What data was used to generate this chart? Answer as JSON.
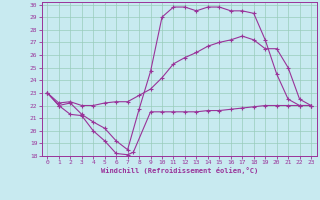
{
  "xlabel": "Windchill (Refroidissement éolien,°C)",
  "background_color": "#c8eaf0",
  "grid_color": "#99ccbb",
  "line_color": "#993399",
  "xlim": [
    -0.5,
    23.5
  ],
  "ylim": [
    18,
    30.2
  ],
  "xticks": [
    0,
    1,
    2,
    3,
    4,
    5,
    6,
    7,
    8,
    9,
    10,
    11,
    12,
    13,
    14,
    15,
    16,
    17,
    18,
    19,
    20,
    21,
    22,
    23
  ],
  "yticks": [
    18,
    19,
    20,
    21,
    22,
    23,
    24,
    25,
    26,
    27,
    28,
    29,
    30
  ],
  "series1_x": [
    0,
    1,
    2,
    3,
    4,
    5,
    6,
    7,
    7.5,
    9,
    10,
    11,
    12,
    13,
    14,
    15,
    16,
    17,
    18,
    19,
    20,
    21,
    22,
    23
  ],
  "series1_y": [
    23.0,
    22.0,
    21.3,
    21.2,
    20.0,
    19.2,
    18.2,
    18.1,
    18.3,
    21.5,
    21.5,
    21.5,
    21.5,
    21.5,
    21.6,
    21.6,
    21.7,
    21.8,
    21.9,
    22.0,
    22.0,
    22.0,
    22.0,
    22.0
  ],
  "series2_x": [
    0,
    1,
    2,
    3,
    4,
    5,
    6,
    7,
    8,
    9,
    10,
    11,
    12,
    13,
    14,
    15,
    16,
    17,
    18,
    19,
    20,
    21,
    22,
    23
  ],
  "series2_y": [
    23.0,
    22.0,
    22.2,
    21.3,
    20.7,
    20.2,
    19.2,
    18.5,
    21.7,
    24.7,
    29.0,
    29.8,
    29.8,
    29.5,
    29.8,
    29.8,
    29.5,
    29.5,
    29.3,
    27.2,
    24.5,
    22.5,
    22.0,
    22.0
  ],
  "series3_x": [
    0,
    1,
    2,
    3,
    4,
    5,
    6,
    7,
    8,
    9,
    10,
    11,
    12,
    13,
    14,
    15,
    16,
    17,
    18,
    19,
    20,
    21,
    22,
    23
  ],
  "series3_y": [
    23.0,
    22.2,
    22.3,
    22.0,
    22.0,
    22.2,
    22.3,
    22.3,
    22.8,
    23.3,
    24.2,
    25.3,
    25.8,
    26.2,
    26.7,
    27.0,
    27.2,
    27.5,
    27.2,
    26.5,
    26.5,
    25.0,
    22.5,
    22.0
  ]
}
